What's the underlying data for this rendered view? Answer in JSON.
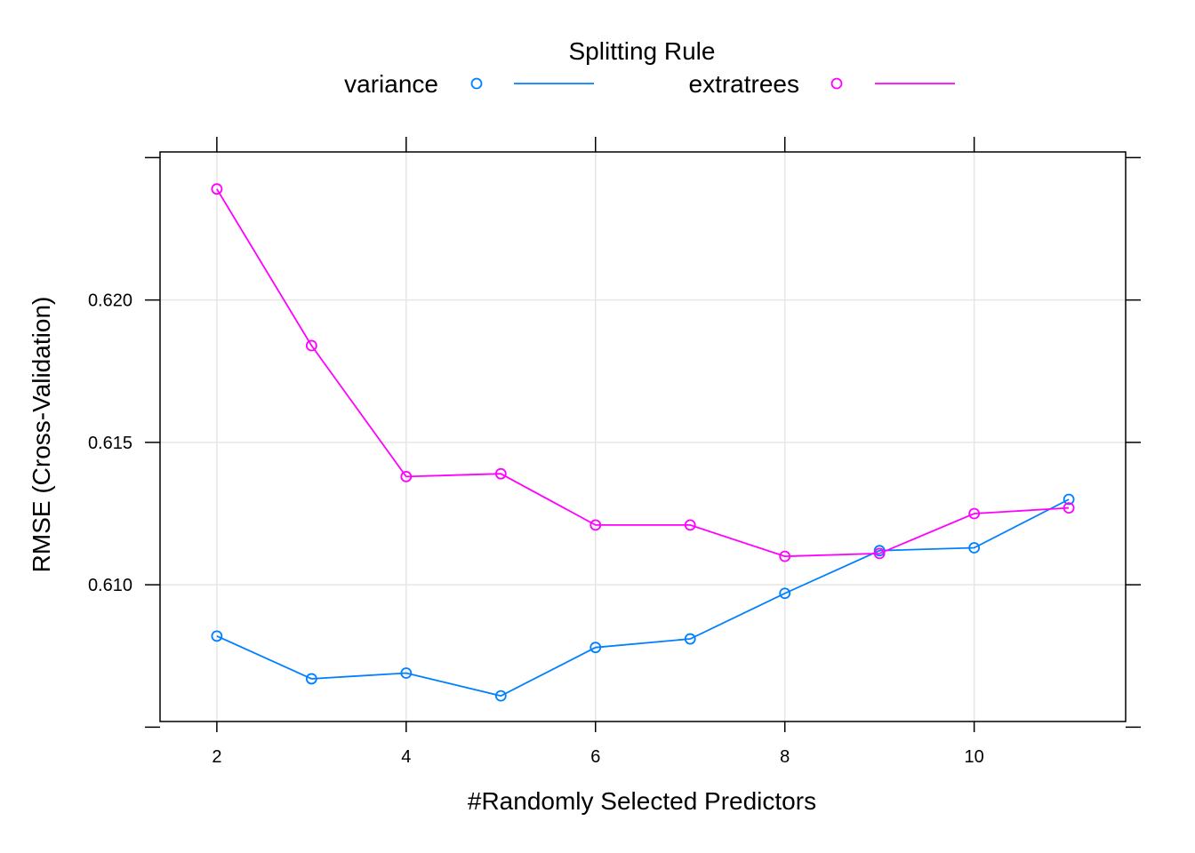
{
  "chart_data": {
    "type": "line",
    "title": "",
    "xlabel": "#Randomly Selected Predictors",
    "ylabel": "RMSE (Cross-Validation)",
    "legend": {
      "title": "Splitting Rule",
      "placement": "top"
    },
    "xlim": [
      1.4,
      11.6
    ],
    "ylim": [
      0.6052,
      0.6252
    ],
    "xticks": [
      2,
      4,
      6,
      8,
      10
    ],
    "yticks": [
      0.61,
      0.615,
      0.62
    ],
    "xtick_labels": [
      "2",
      "4",
      "6",
      "8",
      "10"
    ],
    "ytick_labels": [
      "0.610",
      "0.615",
      "0.620"
    ],
    "grid": true,
    "x": [
      2,
      3,
      4,
      5,
      6,
      7,
      8,
      9,
      10,
      11
    ],
    "series": [
      {
        "name": "variance",
        "color": "#0080ff",
        "values": [
          0.6082,
          0.6067,
          0.6069,
          0.6061,
          0.6078,
          0.6081,
          0.6097,
          0.6112,
          0.6113,
          0.613
        ]
      },
      {
        "name": "extratrees",
        "color": "#ff00ff",
        "values": [
          0.6239,
          0.6184,
          0.6138,
          0.6139,
          0.6121,
          0.6121,
          0.611,
          0.6111,
          0.6125,
          0.6127
        ]
      }
    ]
  }
}
